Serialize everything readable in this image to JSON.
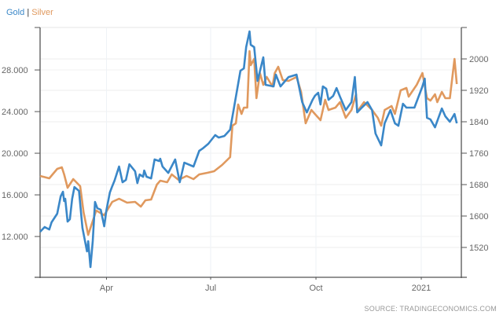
{
  "chart_data": {
    "type": "line",
    "legend": {
      "placement": "top-left",
      "separator": "|"
    },
    "source": "SOURCE: TRADINGECONOMICS.COM",
    "grid": true,
    "x_range": [
      "2020-02-03",
      "2021-02-05"
    ],
    "x_ticks": [
      {
        "date": "2020-04-01",
        "label": "Apr"
      },
      {
        "date": "2020-07-01",
        "label": "Jul"
      },
      {
        "date": "2020-10-01",
        "label": "Oct"
      },
      {
        "date": "2021-01-01",
        "label": "2021"
      }
    ],
    "left_axis": {
      "range": [
        8.08,
        32.08
      ],
      "ticks": [
        12,
        16,
        20,
        24,
        28
      ],
      "tick_labels": [
        "12.000",
        "16.000",
        "20.000",
        "24.000",
        "28.000"
      ]
    },
    "right_axis": {
      "range": [
        1444,
        2080
      ],
      "ticks": [
        1520,
        1600,
        1680,
        1760,
        1840,
        1920,
        2000
      ],
      "tick_labels": [
        "1520",
        "1600",
        "1680",
        "1760",
        "1840",
        "1920",
        "2000"
      ]
    },
    "series": [
      {
        "name": "Gold",
        "axis": "left",
        "color": "#3a87c8",
        "points": [
          [
            "2020-02-03",
            12.45
          ],
          [
            "2020-02-07",
            12.91
          ],
          [
            "2020-02-11",
            12.68
          ],
          [
            "2020-02-13",
            13.36
          ],
          [
            "2020-02-18",
            14.19
          ],
          [
            "2020-02-21",
            15.85
          ],
          [
            "2020-02-23",
            16.3
          ],
          [
            "2020-02-24",
            15.4
          ],
          [
            "2020-02-25",
            15.62
          ],
          [
            "2020-02-27",
            13.43
          ],
          [
            "2020-02-29",
            13.66
          ],
          [
            "2020-03-02",
            15.62
          ],
          [
            "2020-03-04",
            16.75
          ],
          [
            "2020-03-08",
            16.38
          ],
          [
            "2020-03-11",
            12.83
          ],
          [
            "2020-03-15",
            10.57
          ],
          [
            "2020-03-16",
            11.55
          ],
          [
            "2020-03-18",
            9.06
          ],
          [
            "2020-03-20",
            11.55
          ],
          [
            "2020-03-22",
            15.32
          ],
          [
            "2020-03-24",
            14.72
          ],
          [
            "2020-03-27",
            14.57
          ],
          [
            "2020-03-30",
            12.98
          ],
          [
            "2020-04-01",
            14.57
          ],
          [
            "2020-04-04",
            16.23
          ],
          [
            "2020-04-06",
            16.83
          ],
          [
            "2020-04-08",
            17.36
          ],
          [
            "2020-04-12",
            18.72
          ],
          [
            "2020-04-15",
            17.21
          ],
          [
            "2020-04-18",
            17.43
          ],
          [
            "2020-04-21",
            18.94
          ],
          [
            "2020-04-26",
            18.26
          ],
          [
            "2020-04-28",
            17.13
          ],
          [
            "2020-04-30",
            17.96
          ],
          [
            "2020-05-03",
            17.74
          ],
          [
            "2020-05-04",
            18.34
          ],
          [
            "2020-05-06",
            17.74
          ],
          [
            "2020-05-10",
            17.58
          ],
          [
            "2020-05-13",
            19.4
          ],
          [
            "2020-05-17",
            19.25
          ],
          [
            "2020-05-18",
            19.47
          ],
          [
            "2020-05-20",
            18.72
          ],
          [
            "2020-05-25",
            18.11
          ],
          [
            "2020-05-31",
            19.4
          ],
          [
            "2020-06-04",
            17.21
          ],
          [
            "2020-06-08",
            19.09
          ],
          [
            "2020-06-16",
            18.72
          ],
          [
            "2020-06-21",
            20.23
          ],
          [
            "2020-06-24",
            20.45
          ],
          [
            "2020-06-29",
            20.91
          ],
          [
            "2020-07-05",
            21.74
          ],
          [
            "2020-07-08",
            21.51
          ],
          [
            "2020-07-13",
            21.66
          ],
          [
            "2020-07-18",
            22.26
          ],
          [
            "2020-07-21",
            24.15
          ],
          [
            "2020-07-27",
            27.92
          ],
          [
            "2020-07-30",
            28.15
          ],
          [
            "2020-08-01",
            30.19
          ],
          [
            "2020-08-04",
            31.7
          ],
          [
            "2020-08-05",
            30.42
          ],
          [
            "2020-08-08",
            30.19
          ],
          [
            "2020-08-11",
            26.94
          ],
          [
            "2020-08-16",
            29.21
          ],
          [
            "2020-08-18",
            26.57
          ],
          [
            "2020-08-25",
            26.42
          ],
          [
            "2020-08-27",
            27.55
          ],
          [
            "2020-08-31",
            26.42
          ],
          [
            "2020-09-07",
            27.32
          ],
          [
            "2020-09-14",
            27.55
          ],
          [
            "2020-09-19",
            24.91
          ],
          [
            "2020-09-23",
            23.92
          ],
          [
            "2020-09-28",
            25.13
          ],
          [
            "2020-09-30",
            25.51
          ],
          [
            "2020-10-03",
            25.81
          ],
          [
            "2020-10-05",
            24.68
          ],
          [
            "2020-10-07",
            26.42
          ],
          [
            "2020-10-10",
            26.19
          ],
          [
            "2020-10-12",
            25.13
          ],
          [
            "2020-10-16",
            25.51
          ],
          [
            "2020-10-19",
            26.26
          ],
          [
            "2020-10-22",
            25.43
          ],
          [
            "2020-10-27",
            24.15
          ],
          [
            "2020-11-01",
            24.91
          ],
          [
            "2020-11-04",
            27.32
          ],
          [
            "2020-11-06",
            23.92
          ],
          [
            "2020-11-10",
            24.38
          ],
          [
            "2020-11-15",
            24.91
          ],
          [
            "2020-11-19",
            24.15
          ],
          [
            "2020-11-22",
            21.89
          ],
          [
            "2020-11-27",
            20.75
          ],
          [
            "2020-11-30",
            22.87
          ],
          [
            "2020-12-05",
            24.15
          ],
          [
            "2020-12-09",
            22.87
          ],
          [
            "2020-12-12",
            22.64
          ],
          [
            "2020-12-16",
            24.75
          ],
          [
            "2020-12-19",
            24.38
          ],
          [
            "2020-12-26",
            24.38
          ],
          [
            "2021-01-02",
            26.42
          ],
          [
            "2021-01-04",
            27.17
          ],
          [
            "2021-01-06",
            23.4
          ],
          [
            "2021-01-09",
            23.25
          ],
          [
            "2021-01-13",
            22.49
          ],
          [
            "2021-01-19",
            24.3
          ],
          [
            "2021-01-22",
            23.55
          ],
          [
            "2021-01-26",
            23.02
          ],
          [
            "2021-01-30",
            23.77
          ],
          [
            "2021-02-01",
            22.87
          ]
        ]
      },
      {
        "name": "Silver",
        "axis": "right",
        "color": "#e0995e",
        "points": [
          [
            "2020-02-03",
            1702
          ],
          [
            "2020-02-11",
            1696
          ],
          [
            "2020-02-18",
            1720
          ],
          [
            "2020-02-22",
            1724
          ],
          [
            "2020-02-24",
            1706
          ],
          [
            "2020-02-27",
            1672
          ],
          [
            "2020-03-03",
            1694
          ],
          [
            "2020-03-09",
            1676
          ],
          [
            "2020-03-12",
            1610
          ],
          [
            "2020-03-16",
            1552
          ],
          [
            "2020-03-23",
            1614
          ],
          [
            "2020-03-30",
            1602
          ],
          [
            "2020-04-06",
            1636
          ],
          [
            "2020-04-12",
            1644
          ],
          [
            "2020-04-19",
            1634
          ],
          [
            "2020-04-26",
            1636
          ],
          [
            "2020-05-01",
            1624
          ],
          [
            "2020-05-05",
            1640
          ],
          [
            "2020-05-10",
            1642
          ],
          [
            "2020-05-15",
            1680
          ],
          [
            "2020-05-18",
            1690
          ],
          [
            "2020-05-24",
            1686
          ],
          [
            "2020-05-28",
            1706
          ],
          [
            "2020-06-03",
            1692
          ],
          [
            "2020-06-10",
            1702
          ],
          [
            "2020-06-16",
            1694
          ],
          [
            "2020-06-21",
            1706
          ],
          [
            "2020-06-28",
            1710
          ],
          [
            "2020-07-04",
            1714
          ],
          [
            "2020-07-11",
            1730
          ],
          [
            "2020-07-18",
            1750
          ],
          [
            "2020-07-20",
            1830
          ],
          [
            "2020-07-23",
            1836
          ],
          [
            "2020-07-25",
            1884
          ],
          [
            "2020-07-28",
            1860
          ],
          [
            "2020-07-30",
            1876
          ],
          [
            "2020-08-02",
            1876
          ],
          [
            "2020-08-04",
            2020
          ],
          [
            "2020-08-05",
            1984
          ],
          [
            "2020-08-08",
            2000
          ],
          [
            "2020-08-10",
            1900
          ],
          [
            "2020-08-13",
            1964
          ],
          [
            "2020-08-16",
            1934
          ],
          [
            "2020-08-19",
            1954
          ],
          [
            "2020-08-24",
            1930
          ],
          [
            "2020-08-26",
            1964
          ],
          [
            "2020-08-29",
            1980
          ],
          [
            "2020-09-02",
            1946
          ],
          [
            "2020-09-07",
            1944
          ],
          [
            "2020-09-14",
            1954
          ],
          [
            "2020-09-18",
            1916
          ],
          [
            "2020-09-22",
            1836
          ],
          [
            "2020-09-27",
            1870
          ],
          [
            "2020-09-30",
            1860
          ],
          [
            "2020-10-05",
            1844
          ],
          [
            "2020-10-09",
            1896
          ],
          [
            "2020-10-12",
            1870
          ],
          [
            "2020-10-18",
            1876
          ],
          [
            "2020-10-22",
            1890
          ],
          [
            "2020-10-27",
            1850
          ],
          [
            "2020-11-01",
            1870
          ],
          [
            "2020-11-05",
            1910
          ],
          [
            "2020-11-06",
            1866
          ],
          [
            "2020-11-12",
            1890
          ],
          [
            "2020-11-19",
            1870
          ],
          [
            "2020-11-24",
            1850
          ],
          [
            "2020-11-27",
            1830
          ],
          [
            "2020-11-30",
            1870
          ],
          [
            "2020-12-06",
            1880
          ],
          [
            "2020-12-09",
            1860
          ],
          [
            "2020-12-14",
            1920
          ],
          [
            "2020-12-19",
            1926
          ],
          [
            "2020-12-21",
            1904
          ],
          [
            "2020-12-28",
            1934
          ],
          [
            "2021-01-02",
            1964
          ],
          [
            "2021-01-06",
            1900
          ],
          [
            "2021-01-09",
            1894
          ],
          [
            "2021-01-13",
            1910
          ],
          [
            "2021-01-15",
            1890
          ],
          [
            "2021-01-19",
            1916
          ],
          [
            "2021-01-22",
            1900
          ],
          [
            "2021-01-26",
            1900
          ],
          [
            "2021-01-30",
            2000
          ],
          [
            "2021-02-01",
            1936
          ]
        ]
      }
    ]
  }
}
